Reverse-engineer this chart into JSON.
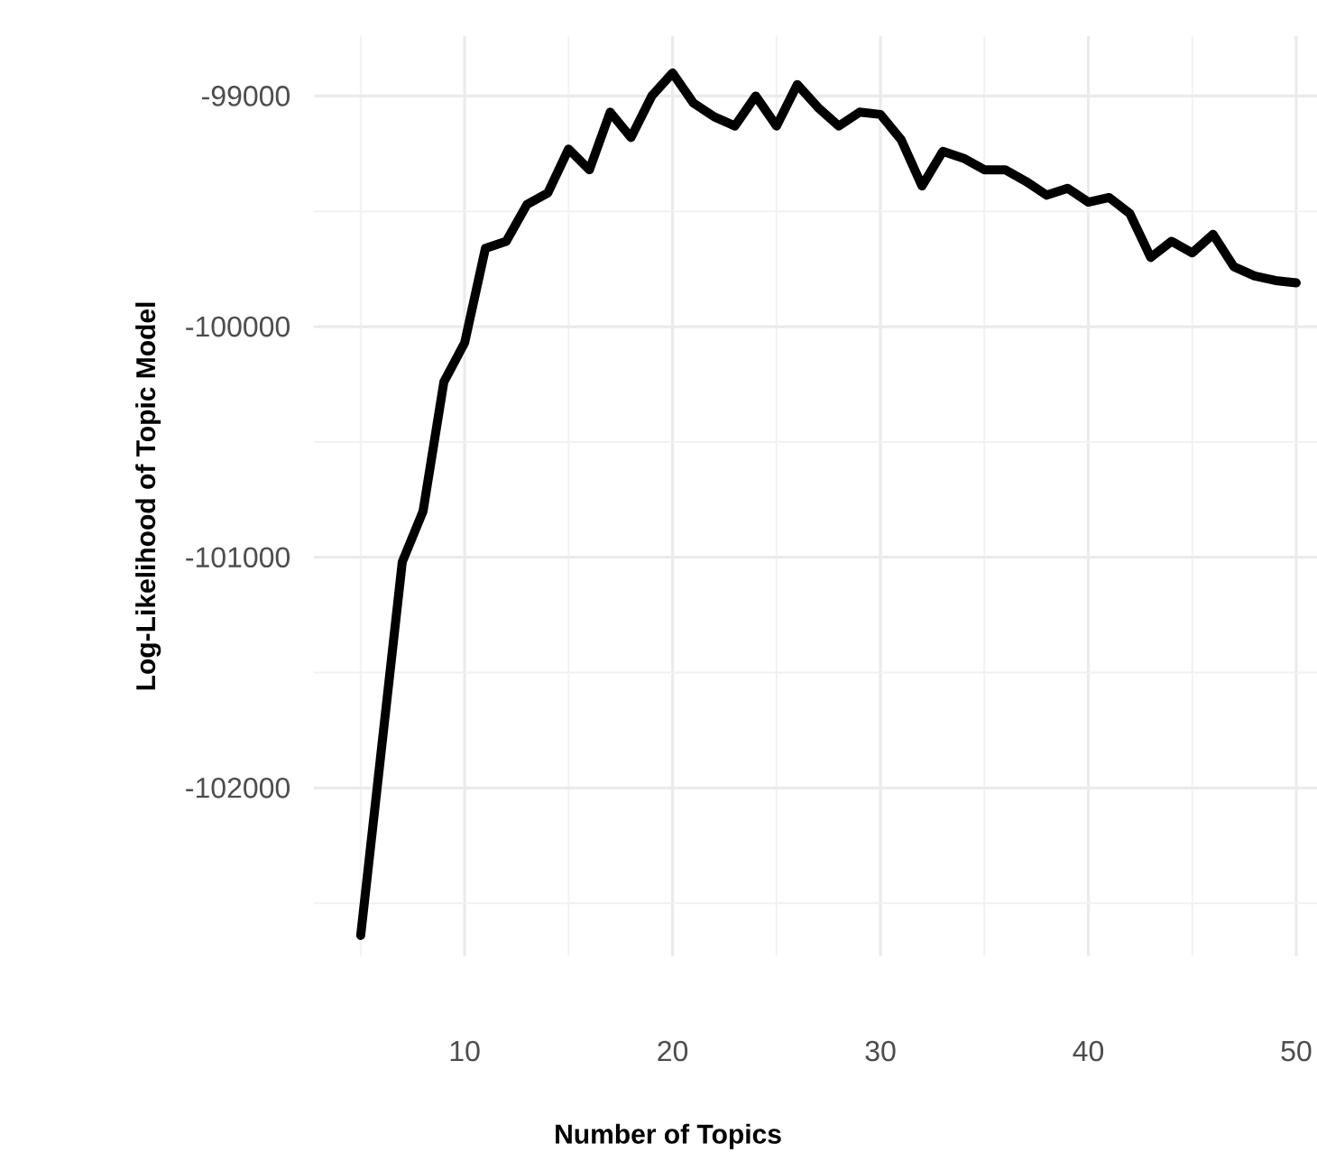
{
  "chart_data": {
    "type": "line",
    "xlabel": "Number of Topics",
    "ylabel": "Log-Likelihood of Topic Model",
    "x": [
      5,
      6,
      7,
      8,
      9,
      10,
      11,
      12,
      13,
      14,
      15,
      16,
      17,
      18,
      19,
      20,
      21,
      22,
      23,
      24,
      25,
      26,
      27,
      28,
      29,
      30,
      31,
      32,
      33,
      34,
      35,
      36,
      37,
      38,
      39,
      40,
      41,
      42,
      43,
      44,
      45,
      46,
      47,
      48,
      49,
      50
    ],
    "series": [
      {
        "color": "#000000",
        "values": [
          -102640,
          -101830,
          -101020,
          -100800,
          -100240,
          -100070,
          -99660,
          -99630,
          -99470,
          -99420,
          -99230,
          -99320,
          -99070,
          -99180,
          -99000,
          -98900,
          -99030,
          -99090,
          -99130,
          -99000,
          -99130,
          -98950,
          -99050,
          -99130,
          -99070,
          -99080,
          -99190,
          -99390,
          -99240,
          -99270,
          -99320,
          -99320,
          -99370,
          -99430,
          -99400,
          -99460,
          -99440,
          -99510,
          -99700,
          -99630,
          -99680,
          -99600,
          -99740,
          -99780,
          -99800,
          -99810
        ]
      }
    ],
    "xlim": [
      2.75,
      51
    ],
    "ylim": [
      -102730,
      -98740
    ],
    "xticks": [
      {
        "value": 5,
        "label": null
      },
      10,
      {
        "value": 15,
        "label": null
      },
      20,
      {
        "value": 25,
        "label": null
      },
      30,
      {
        "value": 35,
        "label": null
      },
      40,
      {
        "value": 45,
        "label": null
      },
      50
    ],
    "yticks": [
      {
        "value": -102500,
        "label": null
      },
      -102000,
      {
        "value": -101500,
        "label": null
      },
      -101000,
      {
        "value": -100500,
        "label": null
      },
      -100000,
      {
        "value": -99500,
        "label": null
      },
      -99000
    ],
    "grid": true,
    "line_style": "solid",
    "marker": "none"
  }
}
